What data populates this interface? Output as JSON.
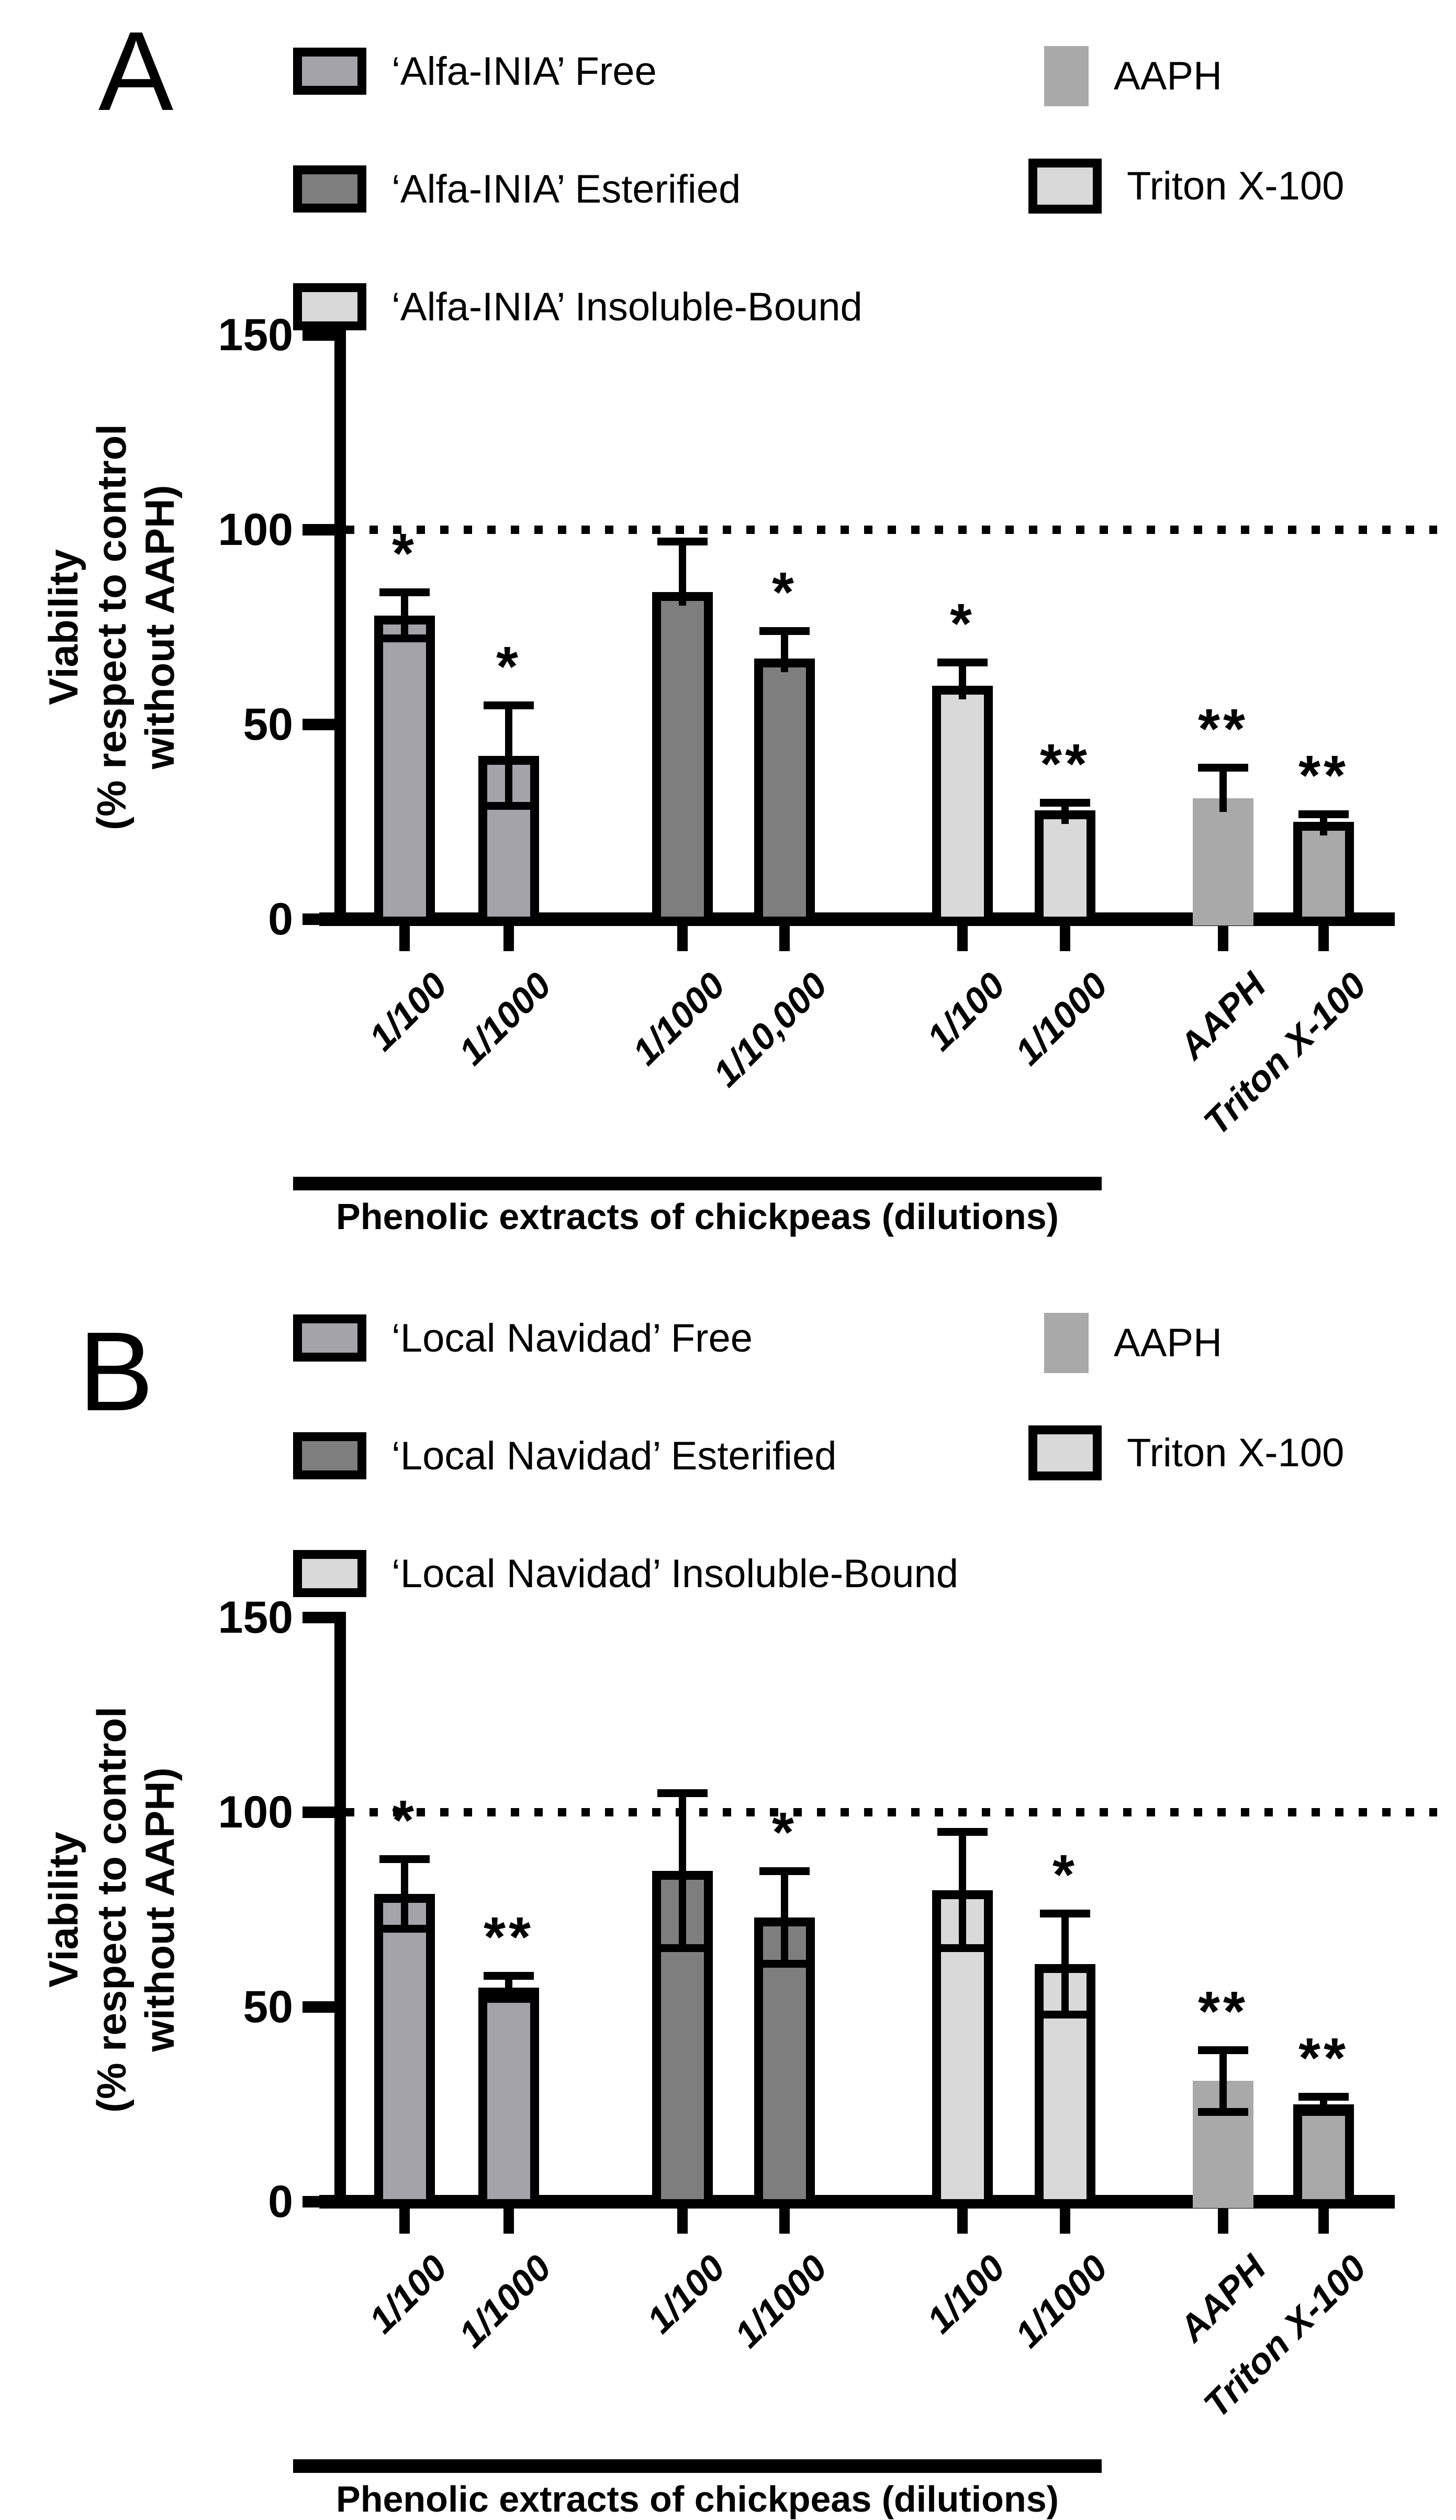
{
  "panels": [
    {
      "panel_letter": "A",
      "legend": {
        "column1": [
          {
            "label": "‘Alfa-INIA’ Free",
            "fill": "#a3a3a9",
            "bordered": true
          },
          {
            "label": "‘Alfa-INIA’ Esterified",
            "fill": "#7e7e7e",
            "bordered": true
          },
          {
            "label": "‘Alfa-INIA’ Insoluble-Bound",
            "fill": "#d9d9d9",
            "bordered": true
          }
        ],
        "column2": [
          {
            "label": "AAPH",
            "fill": "#a9a9a9",
            "bordered": false
          },
          {
            "label": "Triton X-100",
            "fill": "#d9d9d9",
            "bordered": true
          }
        ]
      },
      "chart_data": {
        "type": "bar",
        "title": "",
        "ylabel_lines": [
          "Viability",
          "(% respect to control",
          "without AAPH)"
        ],
        "xlabel": "Phenolic extracts of chickpeas (dilutions)",
        "ylim": [
          0,
          150
        ],
        "yticks": [
          0,
          50,
          100,
          150
        ],
        "reference_line_y": 100,
        "grid": false,
        "groups": [
          "‘Alfa-INIA’ Free",
          "‘Alfa-INIA’ Free",
          "‘Alfa-INIA’ Esterified",
          "‘Alfa-INIA’ Esterified",
          "‘Alfa-INIA’ Insoluble-Bound",
          "‘Alfa-INIA’ Insoluble-Bound",
          "AAPH",
          "Triton X-100"
        ],
        "categories": [
          "1/100",
          "1/1000",
          "1/1000",
          "1/10,000",
          "1/100",
          "1/1000",
          "AAPH",
          "Triton X-100"
        ],
        "values": [
          78,
          42,
          84,
          67,
          60,
          28,
          31,
          25
        ],
        "err_up": [
          6,
          13,
          13,
          7,
          6,
          2,
          8,
          2
        ],
        "err_down": [
          6,
          13,
          null,
          null,
          null,
          null,
          null,
          null
        ],
        "significance": [
          "*",
          "*",
          "",
          "*",
          "*",
          "**",
          "**",
          "**"
        ],
        "bar_fills": [
          "#a3a3a9",
          "#a3a3a9",
          "#7e7e7e",
          "#7e7e7e",
          "#d9d9d9",
          "#d9d9d9",
          "#a9a9a9",
          "#a9a9a9"
        ],
        "bar_bordered": [
          true,
          true,
          true,
          true,
          true,
          true,
          false,
          true
        ]
      }
    },
    {
      "panel_letter": "B",
      "legend": {
        "column1": [
          {
            "label": "‘Local Navidad’ Free",
            "fill": "#a3a3a9",
            "bordered": true
          },
          {
            "label": "‘Local Navidad’ Esterified",
            "fill": "#7e7e7e",
            "bordered": true
          },
          {
            "label": "‘Local Navidad’ Insoluble-Bound",
            "fill": "#d9d9d9",
            "bordered": true
          }
        ],
        "column2": [
          {
            "label": "AAPH",
            "fill": "#a9a9a9",
            "bordered": false
          },
          {
            "label": "Triton X-100",
            "fill": "#d9d9d9",
            "bordered": true
          }
        ]
      },
      "chart_data": {
        "type": "bar",
        "title": "",
        "ylabel_lines": [
          "Viability",
          "(% respect to control",
          "without AAPH)"
        ],
        "xlabel": "Phenolic extracts of chickpeas (dilutions)",
        "ylim": [
          0,
          150
        ],
        "yticks": [
          0,
          50,
          100,
          150
        ],
        "reference_line_y": 100,
        "grid": false,
        "groups": [
          "‘Local Navidad’ Free",
          "‘Local Navidad’ Free",
          "‘Local Navidad’ Esterified",
          "‘Local Navidad’ Esterified",
          "‘Local Navidad’ Insoluble-Bound",
          "‘Local Navidad’ Insoluble-Bound",
          "AAPH",
          "Triton X-100"
        ],
        "categories": [
          "1/100",
          "1/1000",
          "1/100",
          "1/1000",
          "1/100",
          "1/1000",
          "AAPH",
          "Triton X-100"
        ],
        "values": [
          79,
          55,
          85,
          73,
          80,
          61,
          31,
          25
        ],
        "err_up": [
          9,
          3,
          20,
          12,
          15,
          13,
          8,
          2
        ],
        "err_down": [
          9,
          3,
          20,
          12,
          15,
          13,
          8,
          2
        ],
        "significance": [
          "*",
          "**",
          "",
          "*",
          "",
          "*",
          "**",
          "**"
        ],
        "bar_fills": [
          "#a3a3a9",
          "#a3a3a9",
          "#7e7e7e",
          "#7e7e7e",
          "#d9d9d9",
          "#d9d9d9",
          "#a9a9a9",
          "#a9a9a9"
        ],
        "bar_bordered": [
          true,
          true,
          true,
          true,
          true,
          true,
          false,
          true
        ]
      }
    }
  ]
}
